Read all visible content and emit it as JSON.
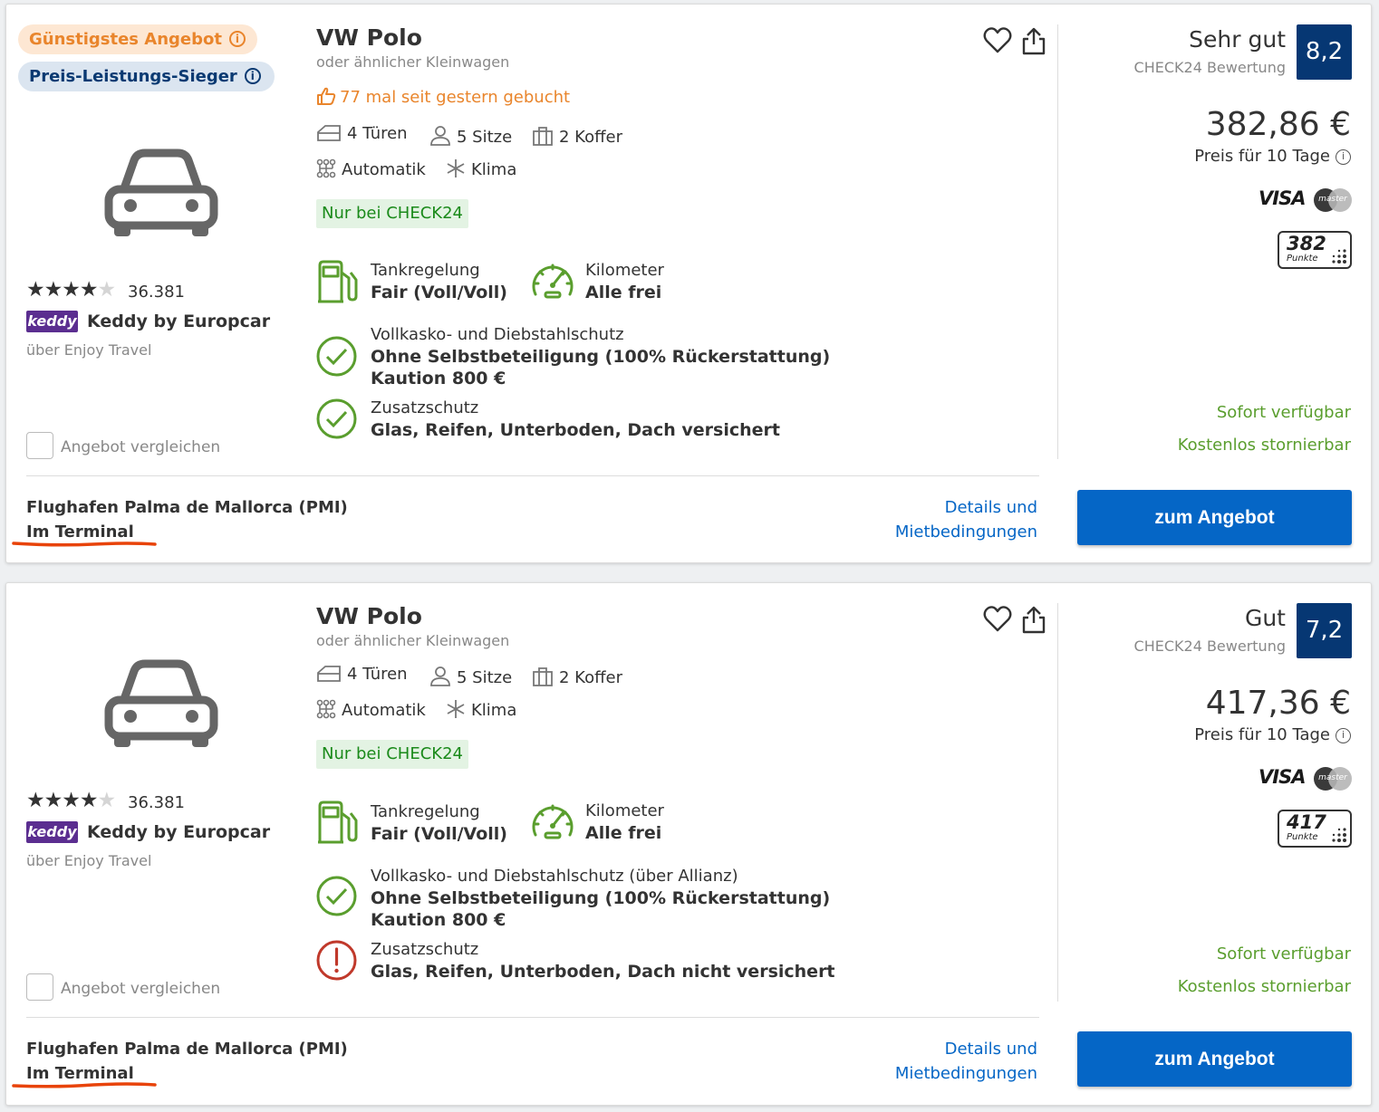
{
  "offers": [
    {
      "badge_cheapest": "Günstigstes Angebot",
      "badge_value": "Preis-Leistungs-Sieger",
      "title": "VW Polo",
      "subtitle": "oder ähnlicher Kleinwagen",
      "booked": "77 mal seit gestern gebucht",
      "doors": "4 Türen",
      "seats": "5 Sitze",
      "luggage": "2 Koffer",
      "transmission": "Automatik",
      "ac": "Klima",
      "exclusive": "Nur bei CHECK24",
      "fuel_label": "Tankregelung",
      "fuel_value": "Fair (Voll/Voll)",
      "km_label": "Kilometer",
      "km_value": "Alle frei",
      "insurance_label": "Vollkasko- und Diebstahlschutz",
      "insurance_value1": "Ohne Selbstbeteiligung (100% Rückerstattung)",
      "insurance_value2": "Kaution 800 €",
      "extra_label": "Zusatzschutz",
      "extra_value": "Glas, Reifen, Unterboden, Dach versichert",
      "extra_status": "ok",
      "stars": 4,
      "reviews": "36.381",
      "vendor_logo": "keddy",
      "vendor": "Keddy by Europcar",
      "via": "über Enjoy Travel",
      "compare": "Angebot vergleichen",
      "location": "Flughafen Palma de Mallorca (PMI)",
      "terminal": "Im Terminal",
      "details_line1": "Details und",
      "details_line2": "Mietbedingungen",
      "rating_word": "Sehr gut",
      "rating_source": "CHECK24 Bewertung",
      "score": "8,2",
      "price": "382,86 €",
      "price_note": "Preis für 10 Tage",
      "visa": "VISA",
      "mastercard": "master",
      "points_num": "382",
      "points_label": "Punkte",
      "available": "Sofort verfügbar",
      "cancel": "Kostenlos stornierbar",
      "cta": "zum Angebot"
    },
    {
      "title": "VW Polo",
      "subtitle": "oder ähnlicher Kleinwagen",
      "doors": "4 Türen",
      "seats": "5 Sitze",
      "luggage": "2 Koffer",
      "transmission": "Automatik",
      "ac": "Klima",
      "exclusive": "Nur bei CHECK24",
      "fuel_label": "Tankregelung",
      "fuel_value": "Fair (Voll/Voll)",
      "km_label": "Kilometer",
      "km_value": "Alle frei",
      "insurance_label": "Vollkasko- und Diebstahlschutz (über Allianz)",
      "insurance_value1": "Ohne Selbstbeteiligung (100% Rückerstattung)",
      "insurance_value2": "Kaution 800 €",
      "extra_label": "Zusatzschutz",
      "extra_value": "Glas, Reifen, Unterboden, Dach nicht versichert",
      "extra_status": "warning",
      "stars": 4,
      "reviews": "36.381",
      "vendor_logo": "keddy",
      "vendor": "Keddy by Europcar",
      "via": "über Enjoy Travel",
      "compare": "Angebot vergleichen",
      "location": "Flughafen Palma de Mallorca (PMI)",
      "terminal": "Im Terminal",
      "details_line1": "Details und",
      "details_line2": "Mietbedingungen",
      "rating_word": "Gut",
      "rating_source": "CHECK24 Bewertung",
      "score": "7,2",
      "price": "417,36 €",
      "price_note": "Preis für 10 Tage",
      "visa": "VISA",
      "mastercard": "master",
      "points_num": "417",
      "points_label": "Punkte",
      "available": "Sofort verfügbar",
      "cancel": "Kostenlos stornierbar",
      "cta": "zum Angebot"
    }
  ],
  "colors": {
    "accent_blue": "#0566c6",
    "score_navy": "#063773",
    "orange": "#e9852c",
    "green": "#5a9e2e",
    "red": "#c0392b"
  },
  "icons": {
    "badge_info": "i",
    "star": "★",
    "car": "car-icon",
    "heart": "heart-icon",
    "share": "share-icon",
    "thumb": "thumbs-up-icon",
    "door": "door-icon",
    "person": "person-icon",
    "luggage": "suitcase-icon",
    "gear": "gearshift-icon",
    "snow": "snowflake-icon",
    "fuel": "fuel-pump-icon",
    "speedo": "speedometer-icon",
    "check": "check-circle-icon",
    "warn": "warning-circle-icon"
  }
}
